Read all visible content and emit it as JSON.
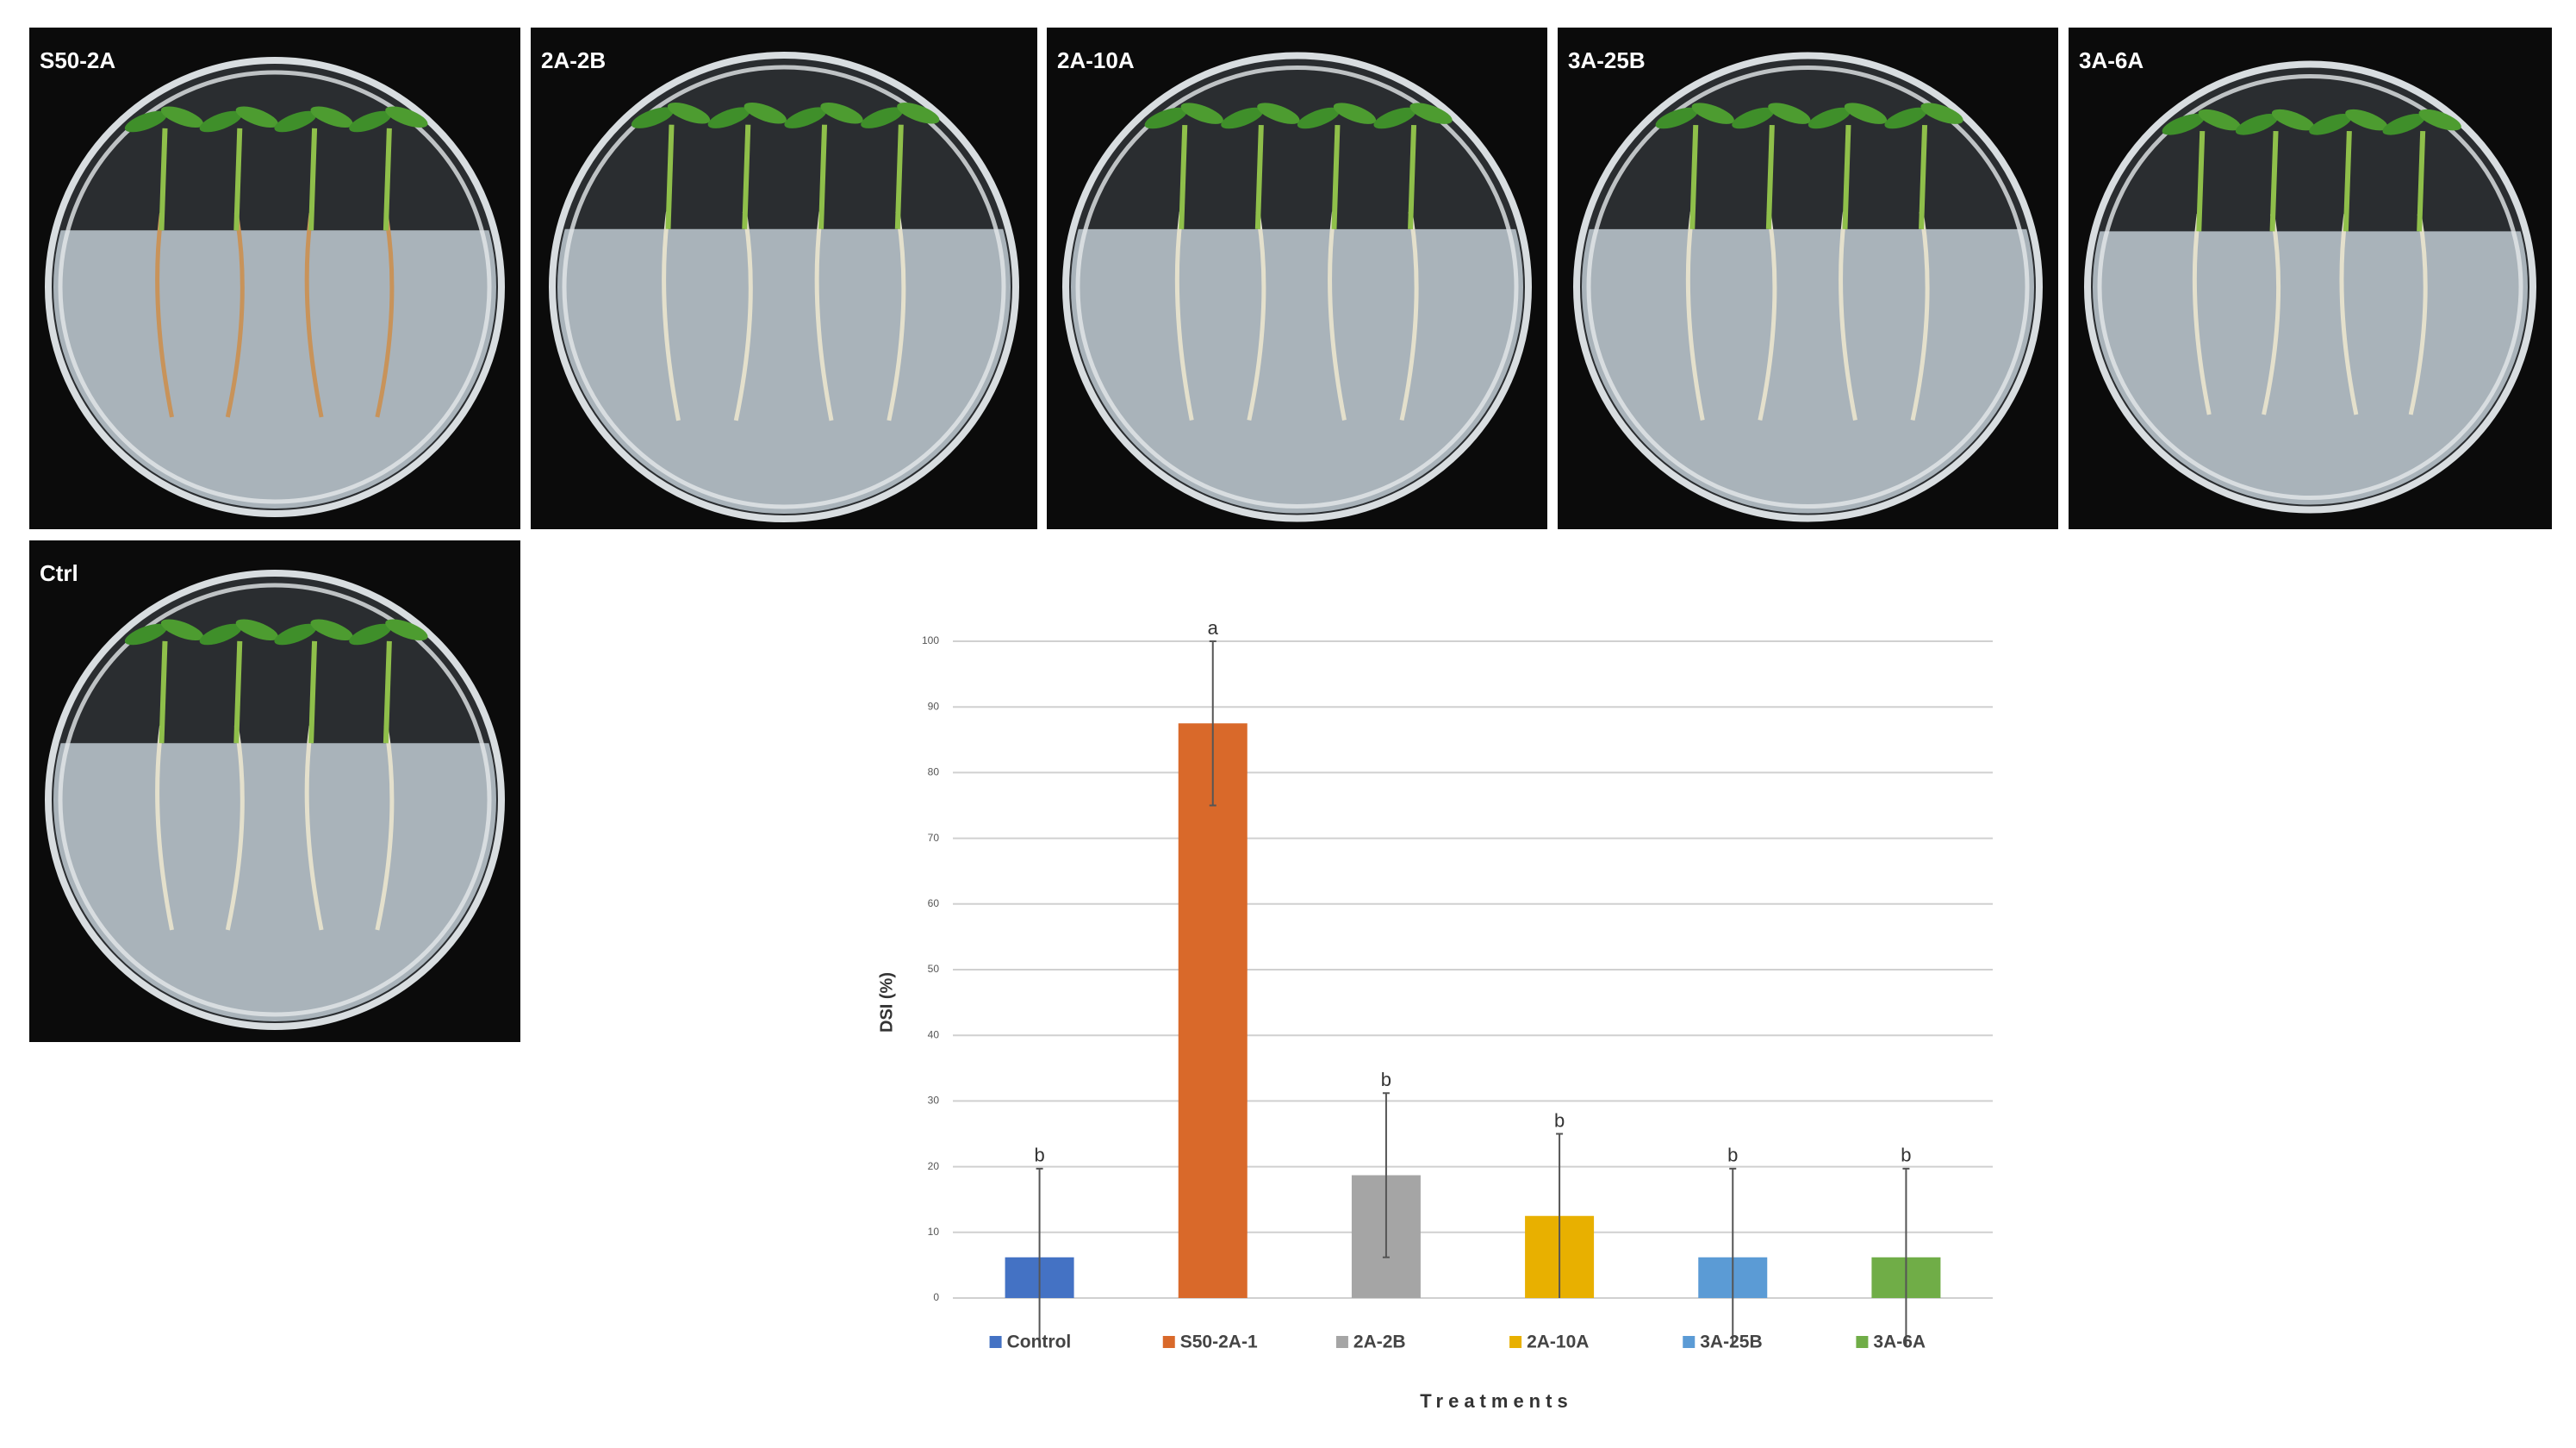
{
  "panels": [
    {
      "label": "S50-2A"
    },
    {
      "label": "2A-2B"
    },
    {
      "label": "2A-10A"
    },
    {
      "label": "3A-25B"
    },
    {
      "label": "3A-6A"
    },
    {
      "label": "Ctrl"
    }
  ],
  "chart_data": {
    "type": "bar",
    "y_label": "DSI (%)",
    "x_label": "Treatments",
    "categories": [
      "Control",
      "S50-2A-1",
      "2A-2B",
      "2A-10A",
      "3A-25B",
      "3A-6A"
    ],
    "values": [
      6.2,
      87.5,
      18.7,
      12.5,
      6.2,
      6.2
    ],
    "errors": [
      13.5,
      12.5,
      12.5,
      12.5,
      13.5,
      13.5
    ],
    "letters": [
      "b",
      "a",
      "b",
      "b",
      "b",
      "b"
    ],
    "colors": [
      "#4472c4",
      "#d9692a",
      "#a5a5a5",
      "#e8b000",
      "#5b9bd5",
      "#70ad47"
    ],
    "ylim": [
      0,
      100
    ],
    "yticks": [
      0,
      10,
      20,
      30,
      40,
      50,
      60,
      70,
      80,
      90,
      100
    ],
    "grid": true
  }
}
